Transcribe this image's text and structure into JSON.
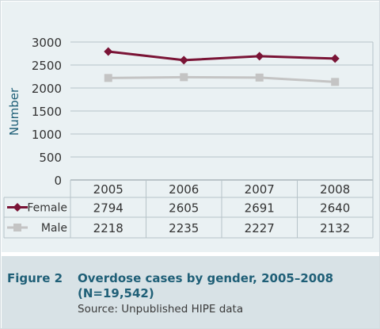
{
  "chart_data": {
    "type": "line",
    "categories": [
      "2005",
      "2006",
      "2007",
      "2008"
    ],
    "series": [
      {
        "name": "Female",
        "values": [
          2794,
          2605,
          2691,
          2640
        ],
        "color": "#7a1436",
        "marker": "diamond"
      },
      {
        "name": "Male",
        "values": [
          2218,
          2235,
          2227,
          2132
        ],
        "color": "#c4c4c4",
        "marker": "square"
      }
    ],
    "ylabel": "Number",
    "ylim": [
      0,
      3000
    ],
    "yticks": [
      0,
      500,
      1000,
      1500,
      2000,
      2500,
      3000
    ],
    "grid": true,
    "data_table": true
  },
  "caption": {
    "label": "Figure 2",
    "title": "Overdose cases by gender, 2005–2008 (N=19,542)",
    "source": "Source: Unpublished HIPE data"
  }
}
